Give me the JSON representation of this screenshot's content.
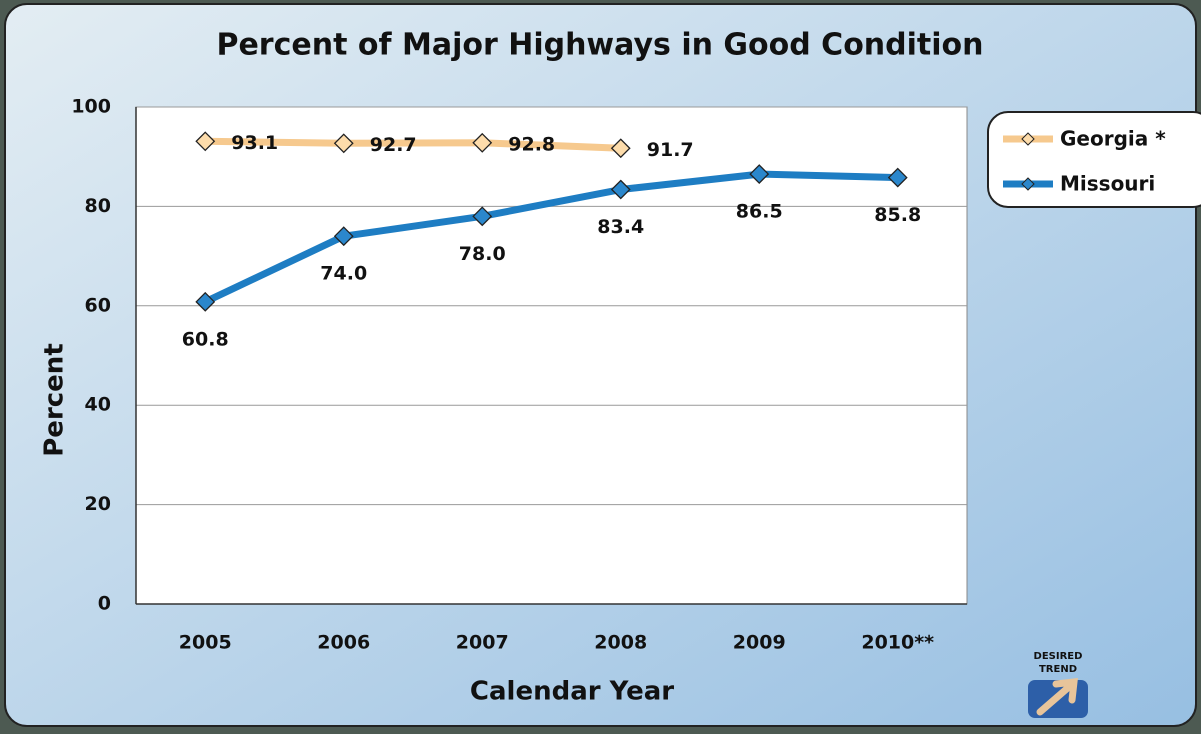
{
  "chart_data": {
    "type": "line",
    "title": "Percent of Major Highways in Good Condition",
    "x_label": "Calendar Year",
    "y_label": "Percent",
    "categories": [
      "2005",
      "2006",
      "2007",
      "2008",
      "2009",
      "2010**"
    ],
    "series": [
      {
        "name": "Georgia *",
        "color": "#f6c98e",
        "marker_color": "#fddcab",
        "values": [
          93.1,
          92.7,
          92.8,
          91.7,
          null,
          null
        ],
        "value_labels": [
          "93.1",
          "92.7",
          "92.8",
          "91.7",
          null,
          null
        ]
      },
      {
        "name": "Missouri",
        "color": "#1e7dc3",
        "marker_color": "#2b87cc",
        "values": [
          60.8,
          74.0,
          78.0,
          83.4,
          86.5,
          85.8
        ],
        "value_labels": [
          "60.8",
          "74.0",
          "78.0",
          "83.4",
          "86.5",
          "85.8"
        ]
      }
    ],
    "ylim": [
      0,
      100
    ],
    "yticks": [
      0,
      20,
      40,
      60,
      80,
      100
    ],
    "grid": true,
    "legend": "upper right",
    "annotations": [
      "DESIRED",
      "TREND"
    ]
  }
}
